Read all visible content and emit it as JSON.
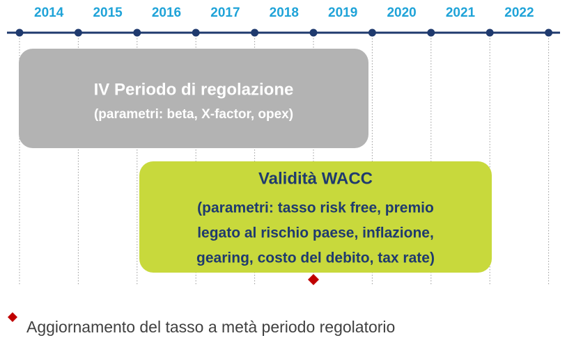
{
  "timeline": {
    "years": [
      "2014",
      "2015",
      "2016",
      "2017",
      "2018",
      "2019",
      "2020",
      "2021",
      "2022"
    ]
  },
  "periods": [
    {
      "title": "IV Periodo di regolazione",
      "lines": [
        "(parametri: beta, X-factor, opex)"
      ]
    },
    {
      "title": "Validità WACC",
      "lines": [
        "(parametri: tasso risk free, premio",
        "legato al rischio paese, inflazione,",
        "gearing, costo del debito, tax rate)"
      ]
    }
  ],
  "legend": {
    "text": "Aggiornamento del tasso a metà periodo regolatorio"
  }
}
